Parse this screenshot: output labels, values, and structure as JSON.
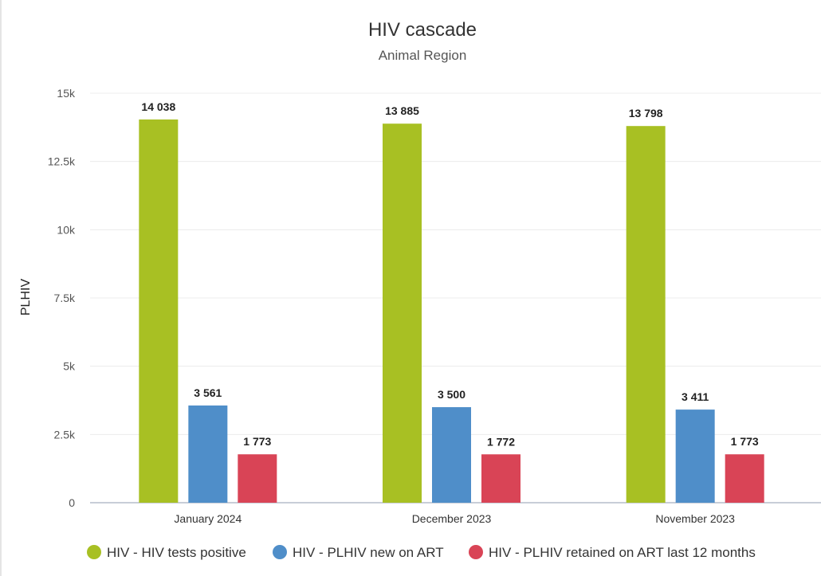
{
  "chart_data": {
    "type": "bar",
    "title": "HIV cascade",
    "subtitle": "Animal Region",
    "xlabel": "",
    "ylabel": "PLHIV",
    "ylim": [
      0,
      15000
    ],
    "yticks": [
      {
        "value": 0,
        "label": "0"
      },
      {
        "value": 2500,
        "label": "2.5k"
      },
      {
        "value": 5000,
        "label": "5k"
      },
      {
        "value": 7500,
        "label": "7.5k"
      },
      {
        "value": 10000,
        "label": "10k"
      },
      {
        "value": 12500,
        "label": "12.5k"
      },
      {
        "value": 15000,
        "label": "15k"
      }
    ],
    "grid": true,
    "legend_position": "bottom",
    "categories": [
      "January 2024",
      "December 2023",
      "November 2023"
    ],
    "series": [
      {
        "name": "HIV - HIV tests positive",
        "color": "#a8c023",
        "values": [
          14038,
          13885,
          13798
        ],
        "labels": [
          "14 038",
          "13 885",
          "13 798"
        ]
      },
      {
        "name": "HIV - PLHIV new on ART",
        "color": "#4f8ec9",
        "values": [
          3561,
          3500,
          3411
        ],
        "labels": [
          "3 561",
          "3 500",
          "3 411"
        ]
      },
      {
        "name": "HIV - PLHIV retained on ART last 12 months",
        "color": "#d94456",
        "values": [
          1773,
          1772,
          1773
        ],
        "labels": [
          "1 773",
          "1 772",
          "1 773"
        ]
      }
    ]
  }
}
